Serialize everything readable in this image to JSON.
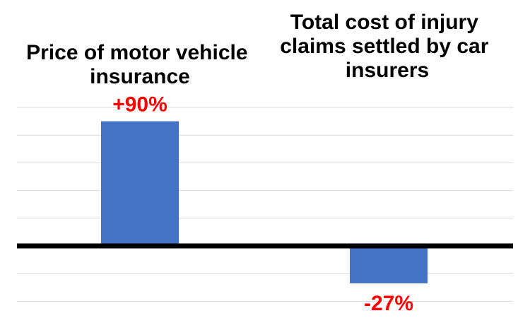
{
  "chart_data": {
    "type": "bar",
    "categories": [
      "Price of motor vehicle insurance",
      "Total cost of injury claims settled by car insurers"
    ],
    "category_title_lines": [
      [
        "Price of motor vehicle",
        "insurance"
      ],
      [
        "Total cost of injury",
        "claims settled by car",
        "insurers"
      ]
    ],
    "values": [
      90,
      -27
    ],
    "data_labels": [
      "+90%",
      "-27%"
    ],
    "unit": "%",
    "ylim": [
      -40,
      100
    ],
    "grid_step": 20,
    "grid": true,
    "legend": "none",
    "xlabel": "",
    "ylabel": ""
  },
  "colors": {
    "bar": "#4472c4",
    "data_label": "#ff0000",
    "gridline": "#d9d9d9",
    "zero_line": "#000000"
  }
}
